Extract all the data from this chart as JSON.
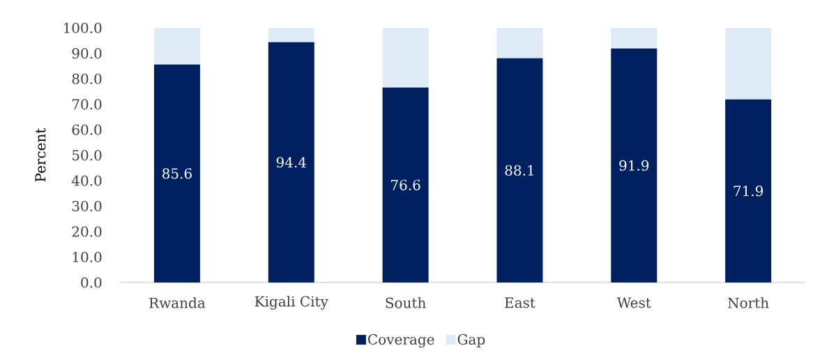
{
  "chart_data": {
    "type": "bar",
    "stacked": true,
    "ylabel": "Percent",
    "categories": [
      "Rwanda",
      "Kigali City",
      "South",
      "East",
      "West",
      "North"
    ],
    "series": [
      {
        "name": "Coverage",
        "color": "#002060",
        "values": [
          85.6,
          94.4,
          76.6,
          88.1,
          91.9,
          71.9
        ],
        "value_labels": [
          "85.6",
          "94.4",
          "76.6",
          "88.1",
          "91.9",
          "71.9"
        ]
      },
      {
        "name": "Gap",
        "color": "#deeaf6",
        "values": [
          14.4,
          5.6,
          23.4,
          11.9,
          8.1,
          28.1
        ]
      }
    ],
    "ylim": [
      0,
      100
    ],
    "yticks": [
      {
        "value": 0,
        "label": "0.0"
      },
      {
        "value": 10,
        "label": "10.0"
      },
      {
        "value": 20,
        "label": "20.0"
      },
      {
        "value": 30,
        "label": "30.0"
      },
      {
        "value": 40,
        "label": "40.0"
      },
      {
        "value": 50,
        "label": "50.0"
      },
      {
        "value": 60,
        "label": "60.0"
      },
      {
        "value": 70,
        "label": "70.0"
      },
      {
        "value": 80,
        "label": "80.0"
      },
      {
        "value": 90,
        "label": "90.0"
      },
      {
        "value": 100,
        "label": "100.0"
      }
    ],
    "legend": "bottom"
  }
}
